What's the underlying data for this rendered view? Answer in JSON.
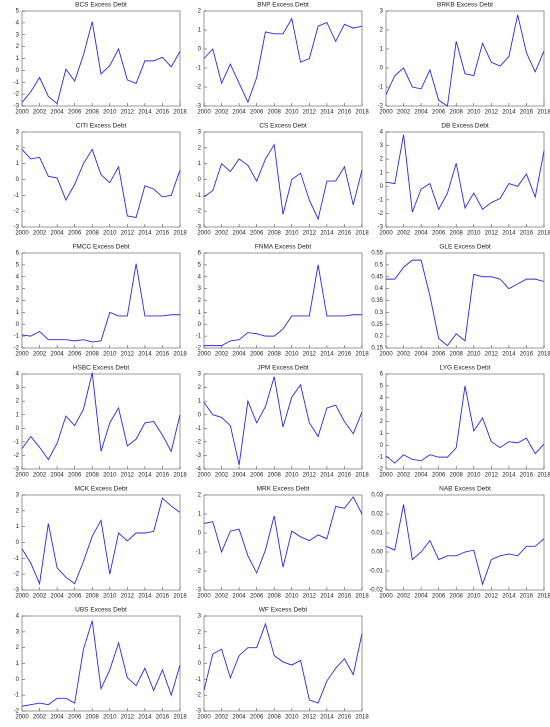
{
  "chart_data": [
    {
      "type": "line",
      "title": "BCS Excess Debt",
      "color": "#2a2ae0",
      "x": [
        2000,
        2001,
        2002,
        2003,
        2004,
        2005,
        2006,
        2007,
        2008,
        2009,
        2010,
        2011,
        2012,
        2013,
        2014,
        2015,
        2016,
        2017,
        2018
      ],
      "xlim": [
        2000,
        2018
      ],
      "xticks": [
        2000,
        2002,
        2004,
        2006,
        2008,
        2010,
        2012,
        2014,
        2016,
        2018
      ],
      "ylim": [
        -3,
        5
      ],
      "yticks": [
        -3,
        -2,
        -1,
        0,
        1,
        2,
        3,
        4,
        5
      ],
      "values": [
        -2.7,
        -1.8,
        -0.6,
        -2.2,
        -2.8,
        0.1,
        -0.9,
        1.3,
        4.1,
        -0.3,
        0.4,
        1.8,
        -0.8,
        -1.1,
        0.8,
        0.8,
        1.1,
        0.3,
        1.6
      ]
    },
    {
      "type": "line",
      "title": "BNP Excess Debt",
      "color": "#2a2ae0",
      "x": [
        2000,
        2001,
        2002,
        2003,
        2004,
        2005,
        2006,
        2007,
        2008,
        2009,
        2010,
        2011,
        2012,
        2013,
        2014,
        2015,
        2016,
        2017,
        2018
      ],
      "xlim": [
        2000,
        2018
      ],
      "xticks": [
        2000,
        2002,
        2004,
        2006,
        2008,
        2010,
        2012,
        2014,
        2016,
        2018
      ],
      "ylim": [
        -3,
        2
      ],
      "yticks": [
        -3,
        -2,
        -1,
        0,
        1,
        2
      ],
      "values": [
        -0.5,
        0,
        -1.8,
        -0.8,
        -1.8,
        -2.8,
        -1.5,
        0.9,
        0.8,
        0.8,
        1.6,
        -0.7,
        -0.5,
        1.2,
        1.4,
        0.4,
        1.3,
        1.1,
        1.2
      ]
    },
    {
      "type": "line",
      "title": "BRKB Excess Debt",
      "color": "#2a2ae0",
      "x": [
        2000,
        2001,
        2002,
        2003,
        2004,
        2005,
        2006,
        2007,
        2008,
        2009,
        2010,
        2011,
        2012,
        2013,
        2014,
        2015,
        2016,
        2017,
        2018
      ],
      "xlim": [
        2000,
        2018
      ],
      "xticks": [
        2000,
        2002,
        2004,
        2006,
        2008,
        2010,
        2012,
        2014,
        2016,
        2018
      ],
      "ylim": [
        -2,
        3
      ],
      "yticks": [
        -2,
        -1,
        0,
        1,
        2,
        3
      ],
      "values": [
        -1.4,
        -0.4,
        0,
        -1.0,
        -1.1,
        -0.1,
        -1.7,
        -2.0,
        1.4,
        -0.3,
        -0.4,
        1.3,
        0.3,
        0.1,
        0.6,
        2.8,
        0.8,
        -0.2,
        0.9
      ]
    },
    {
      "type": "line",
      "title": "CITI Excess Debt",
      "color": "#2a2ae0",
      "x": [
        2000,
        2001,
        2002,
        2003,
        2004,
        2005,
        2006,
        2007,
        2008,
        2009,
        2010,
        2011,
        2012,
        2013,
        2014,
        2015,
        2016,
        2017,
        2018
      ],
      "xlim": [
        2000,
        2018
      ],
      "xticks": [
        2000,
        2002,
        2004,
        2006,
        2008,
        2010,
        2012,
        2014,
        2016,
        2018
      ],
      "ylim": [
        -3,
        3
      ],
      "yticks": [
        -3,
        -2,
        -1,
        0,
        1,
        2,
        3
      ],
      "values": [
        1.9,
        1.3,
        1.4,
        0.2,
        0.1,
        -1.3,
        -0.3,
        1.0,
        1.9,
        0.3,
        -0.2,
        0.8,
        -2.3,
        -2.4,
        -0.4,
        -0.6,
        -1.1,
        -1.0,
        0.6
      ]
    },
    {
      "type": "line",
      "title": "CS Excess Debt",
      "color": "#2a2ae0",
      "x": [
        2000,
        2001,
        2002,
        2003,
        2004,
        2005,
        2006,
        2007,
        2008,
        2009,
        2010,
        2011,
        2012,
        2013,
        2014,
        2015,
        2016,
        2017,
        2018
      ],
      "xlim": [
        2000,
        2018
      ],
      "xticks": [
        2000,
        2002,
        2004,
        2006,
        2008,
        2010,
        2012,
        2014,
        2016,
        2018
      ],
      "ylim": [
        -3,
        3
      ],
      "yticks": [
        -3,
        -2,
        -1,
        0,
        1,
        2,
        3
      ],
      "values": [
        -1.1,
        -0.7,
        1.0,
        0.5,
        1.3,
        0.9,
        -0.1,
        1.3,
        2.2,
        -2.2,
        0,
        0.4,
        -1.3,
        -2.5,
        -0.1,
        -0.1,
        0.8,
        -1.6,
        0.6
      ]
    },
    {
      "type": "line",
      "title": "DB Excess Debt",
      "color": "#2a2ae0",
      "x": [
        2000,
        2001,
        2002,
        2003,
        2004,
        2005,
        2006,
        2007,
        2008,
        2009,
        2010,
        2011,
        2012,
        2013,
        2014,
        2015,
        2016,
        2017,
        2018
      ],
      "xlim": [
        2000,
        2018
      ],
      "xticks": [
        2000,
        2002,
        2004,
        2006,
        2008,
        2010,
        2012,
        2014,
        2016,
        2018
      ],
      "ylim": [
        -3,
        4
      ],
      "yticks": [
        -3,
        -2,
        -1,
        0,
        1,
        2,
        3,
        4
      ],
      "values": [
        0.3,
        0.2,
        3.8,
        -1.9,
        -0.2,
        0.2,
        -1.7,
        -0.5,
        1.7,
        -1.6,
        -0.5,
        -1.7,
        -1.2,
        -0.9,
        0.2,
        0,
        0.9,
        -0.8,
        2.6
      ]
    },
    {
      "type": "line",
      "title": "FMCC Excess Debt",
      "color": "#2a2ae0",
      "x": [
        2000,
        2001,
        2002,
        2003,
        2004,
        2005,
        2006,
        2007,
        2008,
        2009,
        2010,
        2011,
        2012,
        2013,
        2014,
        2015,
        2016,
        2017,
        2018
      ],
      "xlim": [
        2000,
        2018
      ],
      "xticks": [
        2000,
        2002,
        2004,
        2006,
        2008,
        2010,
        2012,
        2014,
        2016,
        2018
      ],
      "ylim": [
        -2,
        6
      ],
      "yticks": [
        -2,
        -1,
        0,
        1,
        2,
        3,
        4,
        5,
        6
      ],
      "values": [
        -0.9,
        -1.0,
        -0.6,
        -1.3,
        -1.3,
        -1.3,
        -1.4,
        -1.3,
        -1.5,
        -1.4,
        1.0,
        0.7,
        0.7,
        5.1,
        0.7,
        0.7,
        0.7,
        0.8,
        0.8
      ]
    },
    {
      "type": "line",
      "title": "FNMA Excess Debt",
      "color": "#2a2ae0",
      "x": [
        2000,
        2001,
        2002,
        2003,
        2004,
        2005,
        2006,
        2007,
        2008,
        2009,
        2010,
        2011,
        2012,
        2013,
        2014,
        2015,
        2016,
        2017,
        2018
      ],
      "xlim": [
        2000,
        2018
      ],
      "xticks": [
        2000,
        2002,
        2004,
        2006,
        2008,
        2010,
        2012,
        2014,
        2016,
        2018
      ],
      "ylim": [
        -2,
        6
      ],
      "yticks": [
        -2,
        -1,
        0,
        1,
        2,
        3,
        4,
        5,
        6
      ],
      "values": [
        -1.8,
        -1.8,
        -1.8,
        -1.4,
        -1.3,
        -0.7,
        -0.8,
        -1.0,
        -1.0,
        -0.4,
        0.7,
        0.7,
        0.7,
        5.0,
        0.7,
        0.7,
        0.7,
        0.8,
        0.8
      ]
    },
    {
      "type": "line",
      "title": "GLE Excess Debt",
      "color": "#2a2ae0",
      "x": [
        2000,
        2001,
        2002,
        2003,
        2004,
        2005,
        2006,
        2007,
        2008,
        2009,
        2010,
        2011,
        2012,
        2013,
        2014,
        2015,
        2016,
        2017,
        2018
      ],
      "xlim": [
        2000,
        2018
      ],
      "xticks": [
        2000,
        2002,
        2004,
        2006,
        2008,
        2010,
        2012,
        2014,
        2016,
        2018
      ],
      "ylim": [
        0.15,
        0.55
      ],
      "yticks": [
        0.15,
        0.2,
        0.25,
        0.3,
        0.35,
        0.4,
        0.45,
        0.5,
        0.55
      ],
      "values": [
        0.44,
        0.44,
        0.49,
        0.52,
        0.52,
        0.37,
        0.19,
        0.16,
        0.21,
        0.18,
        0.46,
        0.45,
        0.45,
        0.44,
        0.4,
        0.42,
        0.44,
        0.44,
        0.43
      ]
    },
    {
      "type": "line",
      "title": "HSBC Excess Debt",
      "color": "#2a2ae0",
      "x": [
        2000,
        2001,
        2002,
        2003,
        2004,
        2005,
        2006,
        2007,
        2008,
        2009,
        2010,
        2011,
        2012,
        2013,
        2014,
        2015,
        2016,
        2017,
        2018
      ],
      "xlim": [
        2000,
        2018
      ],
      "xticks": [
        2000,
        2002,
        2004,
        2006,
        2008,
        2010,
        2012,
        2014,
        2016,
        2018
      ],
      "ylim": [
        -3,
        4
      ],
      "yticks": [
        -3,
        -2,
        -1,
        0,
        1,
        2,
        3,
        4
      ],
      "values": [
        -1.5,
        -0.6,
        -1.4,
        -2.3,
        -1.1,
        0.9,
        0.2,
        1.4,
        4.1,
        -1.7,
        0.4,
        1.5,
        -1.3,
        -0.8,
        0.4,
        0.5,
        -0.5,
        -1.7,
        1.0
      ]
    },
    {
      "type": "line",
      "title": "JPM Excess Debt",
      "color": "#2a2ae0",
      "x": [
        2000,
        2001,
        2002,
        2003,
        2004,
        2005,
        2006,
        2007,
        2008,
        2009,
        2010,
        2011,
        2012,
        2013,
        2014,
        2015,
        2016,
        2017,
        2018
      ],
      "xlim": [
        2000,
        2018
      ],
      "xticks": [
        2000,
        2002,
        2004,
        2006,
        2008,
        2010,
        2012,
        2014,
        2016,
        2018
      ],
      "ylim": [
        -4,
        3
      ],
      "yticks": [
        -4,
        -3,
        -2,
        -1,
        0,
        1,
        2,
        3
      ],
      "values": [
        0.9,
        0,
        -0.2,
        -0.8,
        -3.7,
        1.0,
        -0.6,
        0.6,
        2.8,
        -0.9,
        1.3,
        2.2,
        -0.6,
        -1.6,
        0.5,
        0.7,
        -0.5,
        -1.4,
        0.2
      ]
    },
    {
      "type": "line",
      "title": "LYG Excess Debt",
      "color": "#2a2ae0",
      "x": [
        2000,
        2001,
        2002,
        2003,
        2004,
        2005,
        2006,
        2007,
        2008,
        2009,
        2010,
        2011,
        2012,
        2013,
        2014,
        2015,
        2016,
        2017,
        2018
      ],
      "xlim": [
        2000,
        2018
      ],
      "xticks": [
        2000,
        2002,
        2004,
        2006,
        2008,
        2010,
        2012,
        2014,
        2016,
        2018
      ],
      "ylim": [
        -2,
        6
      ],
      "yticks": [
        -2,
        -1,
        0,
        1,
        2,
        3,
        4,
        5,
        6
      ],
      "values": [
        -0.9,
        -1.5,
        -0.8,
        -1.2,
        -1.3,
        -0.8,
        -1.0,
        -1.0,
        -0.2,
        5.0,
        1.2,
        2.3,
        0.3,
        -0.2,
        0.3,
        0.2,
        0.6,
        -0.7,
        0.1
      ]
    },
    {
      "type": "line",
      "title": "MCK Excess Debt",
      "color": "#2a2ae0",
      "x": [
        2000,
        2001,
        2002,
        2003,
        2004,
        2005,
        2006,
        2007,
        2008,
        2009,
        2010,
        2011,
        2012,
        2013,
        2014,
        2015,
        2016,
        2017,
        2018
      ],
      "xlim": [
        2000,
        2018
      ],
      "xticks": [
        2000,
        2002,
        2004,
        2006,
        2008,
        2010,
        2012,
        2014,
        2016,
        2018
      ],
      "ylim": [
        -3,
        3
      ],
      "yticks": [
        -3,
        -2,
        -1,
        0,
        1,
        2,
        3
      ],
      "values": [
        -0.4,
        -1.3,
        -2.6,
        1.2,
        -1.6,
        -2.2,
        -2.6,
        -1.2,
        0.4,
        1.4,
        -2.0,
        0.6,
        0.1,
        0.6,
        0.6,
        0.7,
        2.8,
        2.3,
        1.9
      ]
    },
    {
      "type": "line",
      "title": "MRK Excess Debt",
      "color": "#2a2ae0",
      "x": [
        2000,
        2001,
        2002,
        2003,
        2004,
        2005,
        2006,
        2007,
        2008,
        2009,
        2010,
        2011,
        2012,
        2013,
        2014,
        2015,
        2016,
        2017,
        2018
      ],
      "xlim": [
        2000,
        2018
      ],
      "xticks": [
        2000,
        2002,
        2004,
        2006,
        2008,
        2010,
        2012,
        2014,
        2016,
        2018
      ],
      "ylim": [
        -3,
        2
      ],
      "yticks": [
        -3,
        -2,
        -1,
        0,
        1,
        2
      ],
      "values": [
        0.5,
        0.6,
        -1.0,
        0.1,
        0.2,
        -1.2,
        -2.1,
        -0.9,
        0.9,
        -1.8,
        0.1,
        -0.2,
        -0.4,
        -0.1,
        -0.3,
        1.4,
        1.3,
        1.9,
        1.0
      ]
    },
    {
      "type": "line",
      "title": "NAB Excess Debt",
      "color": "#2a2ae0",
      "x": [
        2000,
        2001,
        2002,
        2003,
        2004,
        2005,
        2006,
        2007,
        2008,
        2009,
        2010,
        2011,
        2012,
        2013,
        2014,
        2015,
        2016,
        2017,
        2018
      ],
      "xlim": [
        2000,
        2018
      ],
      "xticks": [
        2000,
        2002,
        2004,
        2006,
        2008,
        2010,
        2012,
        2014,
        2016,
        2018
      ],
      "ylim": [
        -0.02,
        0.03
      ],
      "yticks": [
        -0.02,
        -0.01,
        {
          "value": 0,
          "label": "0.00"
        },
        0.01,
        0.02,
        0.03
      ],
      "values": [
        0.003,
        0.001,
        0.025,
        -0.004,
        0,
        0.006,
        -0.004,
        -0.002,
        -0.002,
        0,
        0.001,
        -0.017,
        -0.004,
        -0.002,
        -0.001,
        -0.002,
        0.003,
        0.003,
        0.007
      ]
    },
    {
      "type": "line",
      "title": "UBS Excess Debt",
      "color": "#2a2ae0",
      "x": [
        2000,
        2001,
        2002,
        2003,
        2004,
        2005,
        2006,
        2007,
        2008,
        2009,
        2010,
        2011,
        2012,
        2013,
        2014,
        2015,
        2016,
        2017,
        2018
      ],
      "xlim": [
        2000,
        2018
      ],
      "xticks": [
        2000,
        2002,
        2004,
        2006,
        2008,
        2010,
        2012,
        2014,
        2016,
        2018
      ],
      "ylim": [
        -2,
        4
      ],
      "yticks": [
        -2,
        -1,
        0,
        1,
        2,
        3,
        4
      ],
      "values": [
        -1.7,
        -1.6,
        -1.5,
        -1.6,
        -1.2,
        -1.2,
        -1.5,
        1.9,
        3.7,
        -0.6,
        0.6,
        2.3,
        0.1,
        -0.4,
        0.7,
        -0.7,
        0.6,
        -1.0,
        0.9
      ]
    },
    {
      "type": "line",
      "title": "WF Excess Debt",
      "color": "#2a2ae0",
      "x": [
        2000,
        2001,
        2002,
        2003,
        2004,
        2005,
        2006,
        2007,
        2008,
        2009,
        2010,
        2011,
        2012,
        2013,
        2014,
        2015,
        2016,
        2017,
        2018
      ],
      "xlim": [
        2000,
        2018
      ],
      "xticks": [
        2000,
        2002,
        2004,
        2006,
        2008,
        2010,
        2012,
        2014,
        2016,
        2018
      ],
      "ylim": [
        -3,
        3
      ],
      "yticks": [
        -3,
        -2,
        -1,
        0,
        1,
        2,
        3
      ],
      "values": [
        -1.7,
        0.6,
        0.9,
        -0.9,
        0.5,
        1.0,
        1.0,
        2.5,
        0.5,
        0.1,
        -0.1,
        0.2,
        -2.3,
        -2.5,
        -1.1,
        -0.3,
        0.3,
        -0.7,
        1.9
      ]
    }
  ]
}
